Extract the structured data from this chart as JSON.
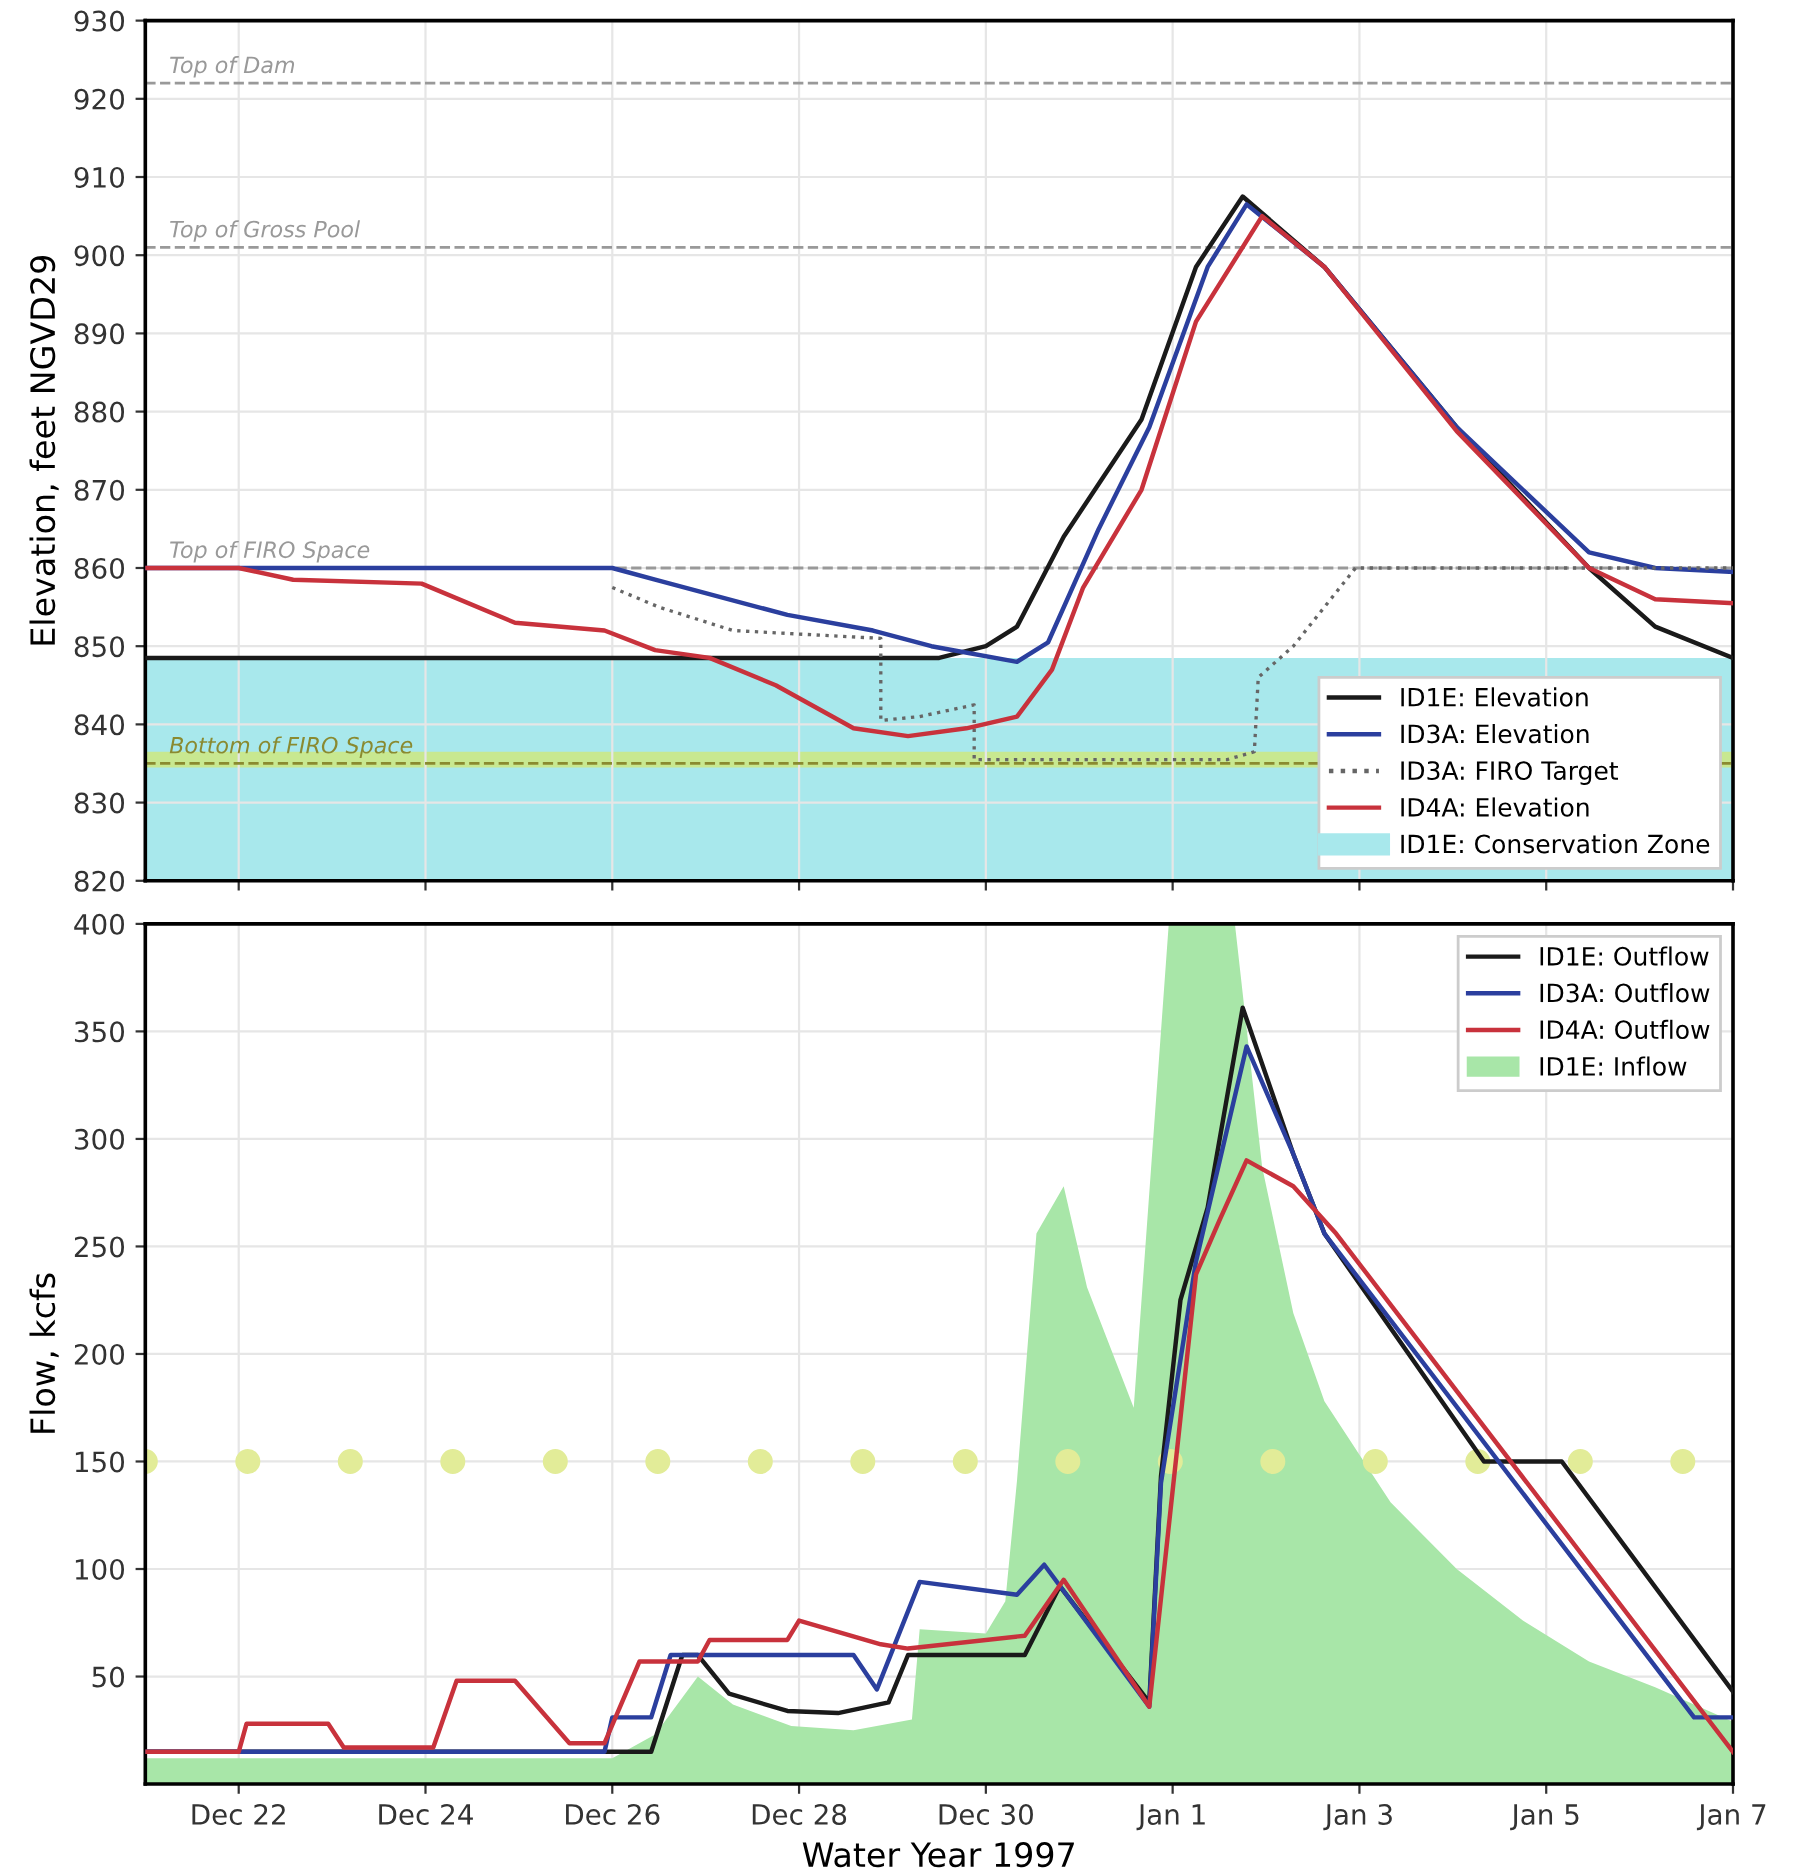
{
  "chart_data": [
    {
      "type": "line",
      "ylabel": "Elevation, feet NGVD29",
      "xlim": [
        "1996-12-21",
        "1997-01-07"
      ],
      "xticks": [
        {
          "value": "1996-12-22",
          "label": null
        },
        {
          "value": "1996-12-24",
          "label": null
        },
        {
          "value": "1996-12-26",
          "label": null
        },
        {
          "value": "1996-12-28",
          "label": null
        },
        {
          "value": "1996-12-30",
          "label": null
        },
        {
          "value": "1997-01-01",
          "label": null
        },
        {
          "value": "1997-01-03",
          "label": null
        },
        {
          "value": "1997-01-05",
          "label": null
        },
        {
          "value": "1997-01-07",
          "label": null
        }
      ],
      "ylim": [
        820,
        930
      ],
      "yticks": [
        820,
        830,
        840,
        850,
        860,
        870,
        880,
        890,
        900,
        910,
        920,
        930
      ],
      "tick_labels": "y",
      "grid": true,
      "legend": "bottom right",
      "series": [
        {
          "name": "ID1E: Elevation",
          "color": "#1a1a1a",
          "line_style": "solid",
          "x": [
            "1996-12-21T00:00",
            "1996-12-29T12:00",
            "1996-12-30T00:00",
            "1996-12-30T08:00",
            "1996-12-30T20:00",
            "1996-12-31T16:00",
            "1997-01-01T06:00",
            "1997-01-01T18:00",
            "1997-01-02T15:00",
            "1997-01-04T01:00",
            "1997-01-05T11:00",
            "1997-01-06T04:00",
            "1997-01-07T00:00"
          ],
          "values": [
            848.5,
            848.5,
            850,
            852.5,
            864,
            879,
            898.5,
            907.5,
            898.5,
            878,
            860,
            852.5,
            848.5
          ]
        },
        {
          "name": "ID3A: Elevation",
          "color": "#2b3f9e",
          "line_style": "solid",
          "x": [
            "1996-12-21T00:00",
            "1996-12-26T00:00",
            "1996-12-26T11:00",
            "1996-12-27T21:00",
            "1996-12-28T19:00",
            "1996-12-29T10:00",
            "1996-12-30T08:00",
            "1996-12-30T16:00",
            "1996-12-31T05:00",
            "1996-12-31T18:00",
            "1997-01-01T09:00",
            "1997-01-01T19:00",
            "1997-01-02T15:00",
            "1997-01-04T01:00",
            "1997-01-05T11:00",
            "1997-01-06T04:00",
            "1997-01-07T00:00"
          ],
          "values": [
            860,
            860,
            858.5,
            854,
            852,
            850,
            848,
            850.5,
            865,
            878,
            898.5,
            906.5,
            898.5,
            878,
            862,
            860,
            859.5
          ]
        },
        {
          "name": "ID3A: FIRO Target",
          "color": "#666666",
          "line_style": "dotted",
          "x": [
            "1996-12-26T00:00",
            "1996-12-26T12:00",
            "1996-12-27T07:00",
            "1996-12-28T21:00",
            "1996-12-28T21:00",
            "1996-12-29T07:00",
            "1996-12-29T21:00",
            "1996-12-29T21:00",
            "1997-01-01T14:00",
            "1997-01-01T21:00",
            "1997-01-01T22:00",
            "1997-01-02T07:00",
            "1997-01-02T23:00",
            "1997-01-07T00:00"
          ],
          "values": [
            857.5,
            855,
            852,
            851,
            840.5,
            841,
            842.5,
            835.5,
            835.5,
            836.5,
            846,
            850,
            860,
            860
          ]
        },
        {
          "name": "ID4A: Elevation",
          "color": "#c8323c",
          "line_style": "solid",
          "x": [
            "1996-12-21T00:00",
            "1996-12-22T00:00",
            "1996-12-22T14:00",
            "1996-12-23T23:00",
            "1996-12-24T23:00",
            "1996-12-25T22:00",
            "1996-12-26T11:00",
            "1996-12-27T01:00",
            "1996-12-27T18:00",
            "1996-12-28T14:00",
            "1996-12-29T04:00",
            "1996-12-29T19:00",
            "1996-12-30T08:00",
            "1996-12-30T17:00",
            "1996-12-31T01:00",
            "1996-12-31T16:00",
            "1997-01-01T06:00",
            "1997-01-01T23:00",
            "1997-01-02T15:00",
            "1997-01-04T01:00",
            "1997-01-05T11:00",
            "1997-01-06T04:00",
            "1997-01-07T00:00"
          ],
          "values": [
            860,
            860,
            858.5,
            858,
            853,
            852,
            849.5,
            848.5,
            845,
            839.5,
            838.5,
            839.5,
            841,
            847,
            857.5,
            870,
            891.5,
            905,
            898.5,
            877.5,
            860,
            856,
            855.5
          ]
        }
      ],
      "bands": [
        {
          "axis": "y",
          "from": 820,
          "to": 848.5,
          "label": "ID1E: Conservation Zone",
          "color": "#a8e8ec"
        },
        {
          "axis": "y",
          "from": 834.5,
          "to": 836.5,
          "color": "#c8e890"
        }
      ],
      "ref_lines": [
        {
          "axis": "y",
          "value": 922,
          "label": "Top of Dam",
          "color": "#999999",
          "line_style": "dashed"
        },
        {
          "axis": "y",
          "value": 901,
          "label": "Top of Gross Pool",
          "color": "#999999",
          "line_style": "dashed"
        },
        {
          "axis": "y",
          "value": 860,
          "label": "Top of FIRO Space",
          "color": "#999999",
          "line_style": "dashed"
        },
        {
          "axis": "y",
          "value": 835,
          "label": "Bottom of FIRO Space",
          "color": "#8a8a30",
          "line_style": "dashed"
        }
      ]
    },
    {
      "type": "line",
      "xlabel": "Water Year 1997",
      "ylabel": "Flow, kcfs",
      "xlim": [
        "1996-12-21",
        "1997-01-07"
      ],
      "xticks": [
        {
          "value": "1996-12-22",
          "label": "Dec 22"
        },
        {
          "value": "1996-12-24",
          "label": "Dec 24"
        },
        {
          "value": "1996-12-26",
          "label": "Dec 26"
        },
        {
          "value": "1996-12-28",
          "label": "Dec 28"
        },
        {
          "value": "1996-12-30",
          "label": "Dec 30"
        },
        {
          "value": "1997-01-01",
          "label": "Jan 1"
        },
        {
          "value": "1997-01-03",
          "label": "Jan 3"
        },
        {
          "value": "1997-01-05",
          "label": "Jan 5"
        },
        {
          "value": "1997-01-07",
          "label": "Jan 7"
        }
      ],
      "ylim": [
        0,
        400
      ],
      "yticks": [
        50,
        100,
        150,
        200,
        250,
        300,
        350,
        400
      ],
      "grid": true,
      "legend": "top right",
      "series": [
        {
          "name": "ID1E: Outflow",
          "color": "#1a1a1a",
          "line_style": "solid",
          "x": [
            "1996-12-21T00:00",
            "1996-12-26T10:00",
            "1996-12-26T18:00",
            "1996-12-26T22:00",
            "1996-12-27T06:00",
            "1996-12-27T21:00",
            "1996-12-28T10:00",
            "1996-12-28T23:00",
            "1996-12-29T04:00",
            "1996-12-30T10:00",
            "1996-12-30T19:00",
            "1996-12-31T18:00",
            "1996-12-31T21:00",
            "1997-01-01T02:00",
            "1997-01-01T09:00",
            "1997-01-01T18:00",
            "1997-01-02T07:00",
            "1997-01-02T15:00",
            "1997-01-04T08:00",
            "1997-01-05T04:00",
            "1997-01-07T00:00"
          ],
          "values": [
            15,
            15,
            60,
            60,
            42,
            34,
            33,
            38,
            60,
            60,
            92,
            38,
            143,
            225,
            268,
            361,
            293,
            256,
            150,
            150,
            43
          ]
        },
        {
          "name": "ID3A: Outflow",
          "color": "#2b3f9e",
          "line_style": "solid",
          "x": [
            "1996-12-21T00:00",
            "1996-12-25T22:00",
            "1996-12-26T00:00",
            "1996-12-26T10:00",
            "1996-12-26T15:00",
            "1996-12-28T14:00",
            "1996-12-28T20:00",
            "1996-12-29T07:00",
            "1996-12-30T08:00",
            "1996-12-30T15:00",
            "1996-12-31T18:00",
            "1996-12-31T21:00",
            "1997-01-01T06:00",
            "1997-01-01T19:00",
            "1997-01-02T07:00",
            "1997-01-02T15:00",
            "1997-01-06T14:00",
            "1997-01-07T00:00"
          ],
          "values": [
            15,
            15,
            31,
            31,
            60,
            60,
            44,
            94,
            88,
            102,
            36,
            140,
            243,
            343,
            293,
            256,
            31,
            31
          ]
        },
        {
          "name": "ID4A: Outflow",
          "color": "#c8323c",
          "line_style": "solid",
          "x": [
            "1996-12-21T00:00",
            "1996-12-22T00:00",
            "1996-12-22T02:00",
            "1996-12-22T23:00",
            "1996-12-23T03:00",
            "1996-12-24T02:00",
            "1996-12-24T08:00",
            "1996-12-24T23:00",
            "1996-12-25T13:00",
            "1996-12-25T22:00",
            "1996-12-26T07:00",
            "1996-12-26T22:00",
            "1996-12-27T01:00",
            "1996-12-27T21:00",
            "1996-12-28T00:00",
            "1996-12-28T21:00",
            "1996-12-29T04:00",
            "1996-12-30T10:00",
            "1996-12-30T20:00",
            "1996-12-31T18:00",
            "1997-01-01T06:00",
            "1997-01-01T12:00",
            "1997-01-01T19:00",
            "1997-01-02T07:00",
            "1997-01-02T18:00",
            "1997-01-07T00:00"
          ],
          "values": [
            15,
            15,
            28,
            28,
            17,
            17,
            48,
            48,
            19,
            19,
            57,
            57,
            67,
            67,
            76,
            65,
            63,
            69,
            95,
            36,
            237,
            262,
            290,
            278,
            256,
            15
          ]
        },
        {
          "name": "ID1E: Inflow",
          "type": "area",
          "color": "#a8e6a8",
          "x": [
            "1996-12-21T00:00",
            "1996-12-26T00:00",
            "1996-12-26T11:00",
            "1996-12-26T22:00",
            "1996-12-27T07:00",
            "1996-12-27T22:00",
            "1996-12-28T14:00",
            "1996-12-29T05:00",
            "1996-12-29T07:00",
            "1996-12-30T00:00",
            "1996-12-30T05:00",
            "1996-12-30T08:00",
            "1996-12-30T13:00",
            "1996-12-30T20:00",
            "1996-12-31T02:00",
            "1996-12-31T14:00",
            "1996-12-31T23:00",
            "1997-01-01T16:00",
            "1997-01-01T23:00",
            "1997-01-02T07:00",
            "1997-01-02T15:00",
            "1997-01-03T08:00",
            "1997-01-04T01:00",
            "1997-01-04T18:00",
            "1997-01-05T11:00",
            "1997-01-06T04:00",
            "1997-01-07T00:00"
          ],
          "values": [
            12,
            12,
            23,
            50,
            37,
            27,
            25,
            30,
            72,
            70,
            85,
            141,
            256,
            278,
            231,
            175,
            400,
            400,
            287,
            219,
            178,
            131,
            100,
            76,
            57,
            45,
            29
          ]
        }
      ],
      "ref_lines": [
        {
          "axis": "y",
          "value": 150,
          "color": "#e2ec98",
          "line_style": "dotted"
        }
      ]
    }
  ]
}
